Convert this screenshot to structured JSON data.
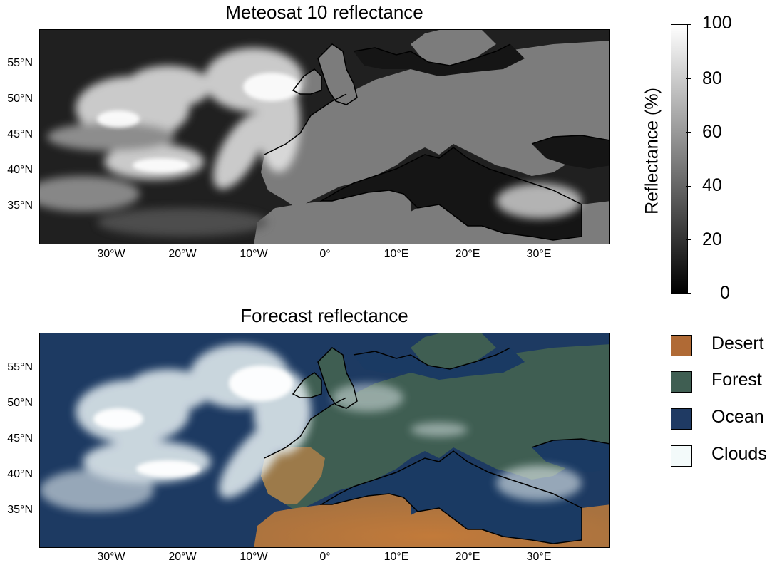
{
  "top_panel": {
    "title": "Meteosat 10 reflectance",
    "lat_labels": [
      "55°N",
      "50°N",
      "45°N",
      "40°N",
      "35°N"
    ],
    "lon_labels": [
      "30°W",
      "20°W",
      "10°W",
      "0°",
      "10°E",
      "20°E",
      "30°E"
    ]
  },
  "bottom_panel": {
    "title": "Forecast reflectance",
    "lat_labels": [
      "55°N",
      "50°N",
      "45°N",
      "40°N",
      "35°N"
    ],
    "lon_labels": [
      "30°W",
      "20°W",
      "10°W",
      "0°",
      "10°E",
      "20°E",
      "30°E"
    ]
  },
  "colorbar": {
    "label": "Reflectance (%)",
    "ticks": [
      "100",
      "80",
      "60",
      "40",
      "20",
      "0"
    ],
    "colors": {
      "low": "#000000",
      "high": "#ffffff"
    }
  },
  "legend": [
    {
      "label": "Desert",
      "color": "#b06a35"
    },
    {
      "label": "Forest",
      "color": "#3f5e52"
    },
    {
      "label": "Ocean",
      "color": "#1f3a63"
    },
    {
      "label": "Clouds",
      "color": "#f3fafa"
    }
  ]
}
